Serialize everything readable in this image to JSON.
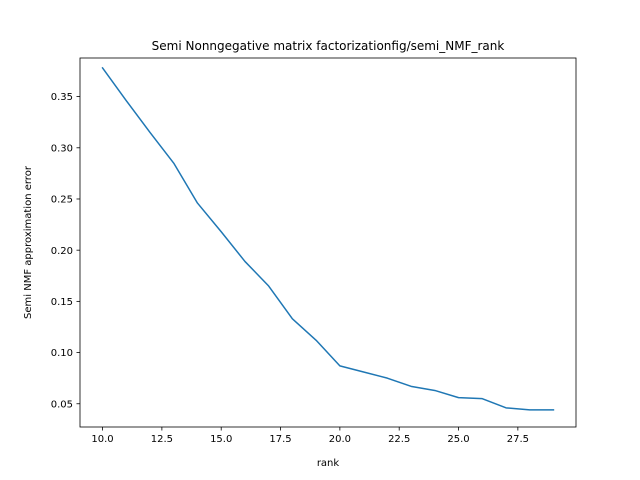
{
  "chart_data": {
    "type": "line",
    "title": "Semi Nonngegative matrix factorizationfig/semi_NMF_rank",
    "xlabel": "rank",
    "ylabel": "Semi NMF approximation error",
    "xlim": [
      9.05,
      29.95
    ],
    "ylim": [
      0.0273,
      0.3877
    ],
    "x_ticks": [
      10.0,
      12.5,
      15.0,
      17.5,
      20.0,
      22.5,
      25.0,
      27.5
    ],
    "x_tick_labels": [
      "10.0",
      "12.5",
      "15.0",
      "17.5",
      "20.0",
      "22.5",
      "25.0",
      "27.5"
    ],
    "y_ticks": [
      0.05,
      0.1,
      0.15,
      0.2,
      0.25,
      0.3,
      0.35
    ],
    "y_tick_labels": [
      "0.05",
      "0.10",
      "0.15",
      "0.20",
      "0.25",
      "0.30",
      "0.35"
    ],
    "grid": false,
    "series": [
      {
        "name": "semi_NMF",
        "color": "#1f77b4",
        "x": [
          10,
          11,
          12,
          13,
          14,
          15,
          16,
          17,
          18,
          19,
          20,
          21,
          22,
          23,
          24,
          25,
          26,
          27,
          28,
          29
        ],
        "y": [
          0.378,
          0.346,
          0.315,
          0.285,
          0.246,
          0.218,
          0.189,
          0.165,
          0.133,
          0.112,
          0.087,
          0.081,
          0.075,
          0.067,
          0.063,
          0.056,
          0.055,
          0.046,
          0.044,
          0.044
        ]
      }
    ]
  }
}
